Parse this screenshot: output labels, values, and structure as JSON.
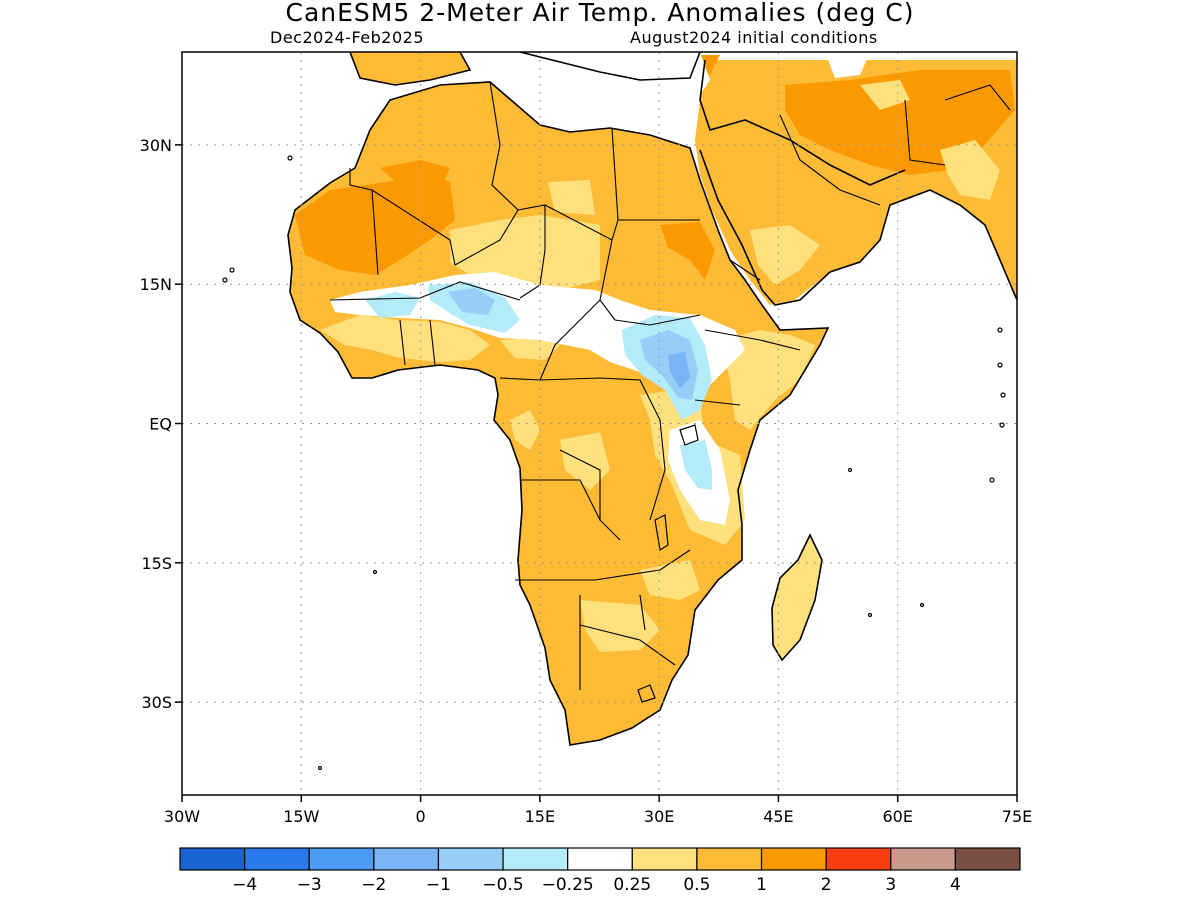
{
  "title": "CanESM5 2-Meter Air Temp. Anomalies (deg C)",
  "subtitle_left": "Dec2024-Feb2025",
  "subtitle_right": "August2024 initial conditions",
  "map": {
    "lat_ticks": [
      "30N",
      "15N",
      "EQ",
      "15S",
      "30S"
    ],
    "lon_ticks": [
      "30W",
      "15W",
      "0",
      "15E",
      "30E",
      "45E",
      "60E",
      "75E"
    ],
    "lat_values": [
      30,
      15,
      0,
      -15,
      -30
    ],
    "lon_values": [
      -30,
      -15,
      0,
      15,
      30,
      45,
      60,
      75
    ],
    "extent": {
      "lon": [
        -30,
        75
      ],
      "lat": [
        -40,
        40
      ]
    },
    "grid": "dotted"
  },
  "colorbar": {
    "colors": [
      "#1a64d2",
      "#2a7aee",
      "#4b9bf2",
      "#79b5f5",
      "#97cdf7",
      "#b3ecf8",
      "#ffffff",
      "#fee17d",
      "#fdbb36",
      "#fb9a00",
      "#fb3d12",
      "#c99a8b",
      "#7a4f43"
    ],
    "labels": [
      "-4",
      "-3",
      "-2",
      "-1",
      "-0.5",
      "-0.25",
      "0.25",
      "0.5",
      "1",
      "2",
      "3",
      "4"
    ]
  }
}
